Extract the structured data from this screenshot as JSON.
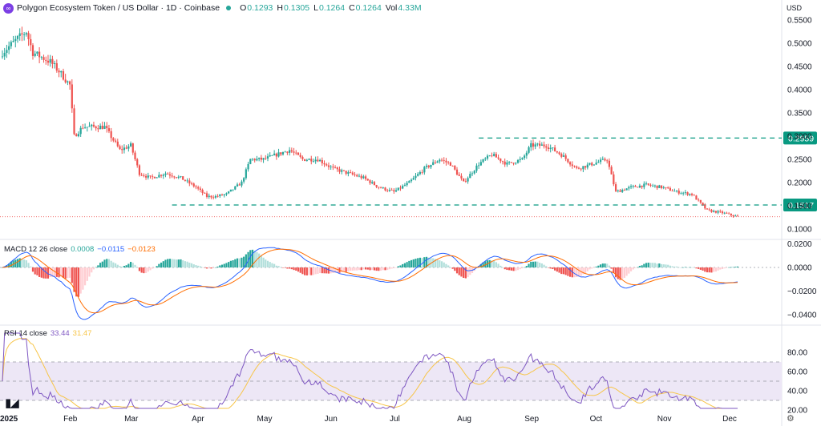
{
  "header": {
    "title": "Polygon Ecosystem Token / US Dollar · 1D · Coinbase",
    "logo_glyph": "∞",
    "ohlc": [
      {
        "k": "O",
        "v": "0.1293"
      },
      {
        "k": "H",
        "v": "0.1305"
      },
      {
        "k": "L",
        "v": "0.1264"
      },
      {
        "k": "C",
        "v": "0.1264"
      },
      {
        "k": "Vol",
        "v": "4.33M"
      }
    ]
  },
  "currency": "USD",
  "macd_legend": {
    "label": "MACD 12 26 close",
    "hist": "0.0008",
    "macd": "−0.0115",
    "signal": "−0.0123"
  },
  "rsi_legend": {
    "label": "RSI 14 close",
    "rsi": "33.44",
    "ma": "31.47"
  },
  "colors": {
    "up": "#26a69a",
    "down": "#ef5350",
    "macd": "#2962ff",
    "signal": "#ff6d00",
    "rsi": "#7e57c2",
    "rsi_ma": "#f7c548",
    "band": "#ede7f6"
  },
  "icons": {
    "settings": "gear-icon",
    "logo": "polygon-logo-icon",
    "brand": "tradingview-logo-icon"
  },
  "chart_data": {
    "type": "candlestick",
    "price_axis": {
      "ticks": [
        "0.5500",
        "0.5000",
        "0.4500",
        "0.4000",
        "0.3500",
        "0.3000",
        "0.2500",
        "0.2000",
        "0.1500",
        "0.1000"
      ],
      "values": [
        0.55,
        0.5,
        0.45,
        0.4,
        0.35,
        0.3,
        0.25,
        0.2,
        0.15,
        0.1
      ]
    },
    "x_axis": {
      "labels": [
        "2025",
        "Feb",
        "Mar",
        "Apr",
        "May",
        "Jun",
        "Jul",
        "Aug",
        "Sep",
        "Oct",
        "Nov",
        "Dec"
      ],
      "dates": [
        "2025-01-01",
        "2025-02-01",
        "2025-03-01",
        "2025-04-01",
        "2025-05-01",
        "2025-06-01",
        "2025-07-01",
        "2025-08-01",
        "2025-09-01",
        "2025-10-01",
        "2025-11-01",
        "2025-12-01"
      ]
    },
    "last_date": "2025-12-05",
    "levels": [
      {
        "value": 0.2959,
        "label": "0.2959",
        "from": "2025-08-08",
        "to": "2025-12-31"
      },
      {
        "value": 0.1517,
        "label": "0.1517",
        "from": "2025-03-20",
        "to": "2025-12-31"
      }
    ],
    "last_price": 0.1264,
    "closes_weekly": [
      [
        "2025-01-01",
        0.48
      ],
      [
        "2025-01-08",
        0.51
      ],
      [
        "2025-01-12",
        0.525
      ],
      [
        "2025-01-15",
        0.48
      ],
      [
        "2025-01-19",
        0.47
      ],
      [
        "2025-01-23",
        0.46
      ],
      [
        "2025-01-27",
        0.44
      ],
      [
        "2025-02-01",
        0.41
      ],
      [
        "2025-02-03",
        0.3
      ],
      [
        "2025-02-07",
        0.32
      ],
      [
        "2025-02-12",
        0.32
      ],
      [
        "2025-02-17",
        0.32
      ],
      [
        "2025-02-24",
        0.27
      ],
      [
        "2025-03-01",
        0.28
      ],
      [
        "2025-03-05",
        0.22
      ],
      [
        "2025-03-10",
        0.21
      ],
      [
        "2025-03-17",
        0.22
      ],
      [
        "2025-03-24",
        0.21
      ],
      [
        "2025-03-31",
        0.19
      ],
      [
        "2025-04-05",
        0.17
      ],
      [
        "2025-04-09",
        0.17
      ],
      [
        "2025-04-14",
        0.175
      ],
      [
        "2025-04-21",
        0.2
      ],
      [
        "2025-04-25",
        0.25
      ],
      [
        "2025-05-01",
        0.25
      ],
      [
        "2025-05-07",
        0.26
      ],
      [
        "2025-05-13",
        0.27
      ],
      [
        "2025-05-19",
        0.25
      ],
      [
        "2025-05-26",
        0.25
      ],
      [
        "2025-06-02",
        0.23
      ],
      [
        "2025-06-09",
        0.22
      ],
      [
        "2025-06-16",
        0.21
      ],
      [
        "2025-06-23",
        0.19
      ],
      [
        "2025-06-30",
        0.18
      ],
      [
        "2025-07-07",
        0.2
      ],
      [
        "2025-07-14",
        0.23
      ],
      [
        "2025-07-21",
        0.25
      ],
      [
        "2025-07-26",
        0.24
      ],
      [
        "2025-08-01",
        0.2
      ],
      [
        "2025-08-08",
        0.24
      ],
      [
        "2025-08-14",
        0.26
      ],
      [
        "2025-08-21",
        0.24
      ],
      [
        "2025-08-28",
        0.25
      ],
      [
        "2025-09-01",
        0.28
      ],
      [
        "2025-09-08",
        0.28
      ],
      [
        "2025-09-15",
        0.26
      ],
      [
        "2025-09-22",
        0.23
      ],
      [
        "2025-09-29",
        0.24
      ],
      [
        "2025-10-06",
        0.25
      ],
      [
        "2025-10-10",
        0.18
      ],
      [
        "2025-10-17",
        0.19
      ],
      [
        "2025-10-24",
        0.195
      ],
      [
        "2025-10-31",
        0.19
      ],
      [
        "2025-11-07",
        0.18
      ],
      [
        "2025-11-14",
        0.175
      ],
      [
        "2025-11-21",
        0.14
      ],
      [
        "2025-11-28",
        0.135
      ],
      [
        "2025-12-05",
        0.1264
      ]
    ],
    "macd_axis": {
      "ticks": [
        "0.0200",
        "0.0000",
        "−0.0200",
        "−0.0400"
      ],
      "values": [
        0.02,
        0,
        -0.02,
        -0.04
      ]
    },
    "rsi_axis": {
      "ticks": [
        "80.00",
        "60.00",
        "40.00",
        "20.00"
      ],
      "values": [
        80,
        60,
        40,
        20
      ],
      "band": [
        30,
        70
      ],
      "mid": 50
    }
  }
}
